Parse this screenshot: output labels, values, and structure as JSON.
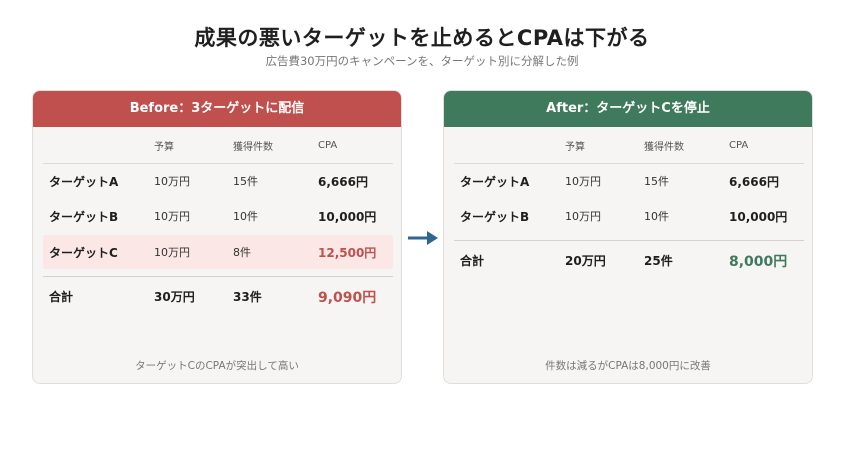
{
  "title": "成果の悪いターゲットを止めるとCPAは下がる",
  "subtitle": "広告費30万円のキャンペーンを、ターゲット別に分解した例",
  "colors": {
    "before_header": "#c0504d",
    "after_header": "#3e7a5b",
    "arrow": "#2f6690",
    "highlight_row": "#fbe8e6"
  },
  "columns": {
    "budget": "予算",
    "count": "獲得件数",
    "cpa": "CPA"
  },
  "before": {
    "header": "Before：3ターゲットに配信",
    "rows": [
      {
        "name": "ターゲットA",
        "budget": "10万円",
        "count": "15件",
        "cpa": "6,666円"
      },
      {
        "name": "ターゲットB",
        "budget": "10万円",
        "count": "10件",
        "cpa": "10,000円"
      },
      {
        "name": "ターゲットC",
        "budget": "10万円",
        "count": "8件",
        "cpa": "12,500円"
      }
    ],
    "total": {
      "name": "合計",
      "budget": "30万円",
      "count": "33件",
      "cpa": "9,090円"
    },
    "footer": "ターゲットCのCPAが突出して高い"
  },
  "after": {
    "header": "After：ターゲットCを停止",
    "rows": [
      {
        "name": "ターゲットA",
        "budget": "10万円",
        "count": "15件",
        "cpa": "6,666円"
      },
      {
        "name": "ターゲットB",
        "budget": "10万円",
        "count": "10件",
        "cpa": "10,000円"
      }
    ],
    "total": {
      "name": "合計",
      "budget": "20万円",
      "count": "25件",
      "cpa": "8,000円"
    },
    "footer": "件数は減るがCPAは8,000円に改善"
  }
}
